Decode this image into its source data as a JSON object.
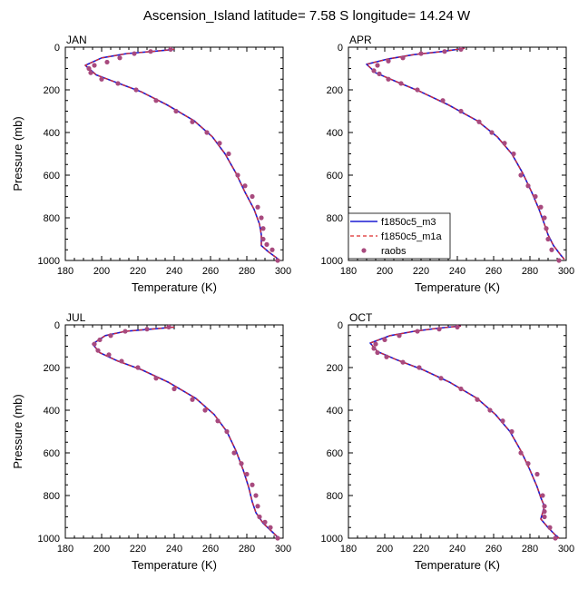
{
  "figure": {
    "title": "Ascension_Island  latitude= 7.58 S longitude= 14.24 W"
  },
  "chart_data": [
    {
      "type": "line",
      "panel": "JAN",
      "xlabel": "Temperature (K)",
      "ylabel": "Pressure (mb)",
      "xlim": [
        180,
        300
      ],
      "ylim": [
        0,
        1000
      ],
      "y_reversed": true,
      "x_ticks": [
        180,
        200,
        220,
        240,
        260,
        280,
        300
      ],
      "y_ticks": [
        0,
        200,
        400,
        600,
        800,
        1000
      ],
      "series": [
        {
          "name": "f1850c5_m3",
          "style": "solid",
          "color": "#1a1ad2",
          "x": [
            240,
            228,
            214,
            200,
            191,
            197,
            208,
            222,
            236,
            251,
            261,
            268,
            274,
            279,
            284,
            287,
            288,
            288,
            292,
            296,
            298
          ],
          "y": [
            10,
            20,
            30,
            50,
            85,
            130,
            165,
            210,
            270,
            345,
            420,
            500,
            590,
            680,
            760,
            830,
            880,
            930,
            960,
            985,
            1000
          ]
        },
        {
          "name": "f1850c5_m1a",
          "style": "dashed",
          "color": "#dd2a2a",
          "x": [
            240,
            228,
            214,
            200,
            191,
            197,
            208,
            222,
            236,
            251,
            261,
            268,
            274,
            279,
            284,
            287,
            288,
            288,
            292,
            296,
            298
          ],
          "y": [
            10,
            20,
            30,
            50,
            85,
            130,
            165,
            210,
            270,
            345,
            420,
            500,
            590,
            680,
            760,
            830,
            880,
            930,
            960,
            985,
            1000
          ]
        },
        {
          "name": "raobs",
          "style": "markers",
          "color": "#a84a7e",
          "x": [
            238,
            227,
            218,
            210,
            203,
            196,
            193,
            194,
            200,
            209,
            219,
            230,
            241,
            250,
            258,
            265,
            270,
            275,
            279,
            283,
            286,
            288,
            289,
            289,
            291,
            294,
            297
          ],
          "y": [
            10,
            20,
            30,
            50,
            70,
            85,
            100,
            120,
            150,
            170,
            200,
            250,
            300,
            350,
            400,
            450,
            500,
            600,
            650,
            700,
            750,
            800,
            850,
            900,
            925,
            950,
            1000
          ]
        }
      ]
    },
    {
      "type": "line",
      "panel": "APR",
      "xlabel": "Temperature (K)",
      "ylabel": "",
      "xlim": [
        180,
        300
      ],
      "ylim": [
        0,
        1000
      ],
      "y_reversed": true,
      "x_ticks": [
        180,
        200,
        220,
        240,
        260,
        280,
        300
      ],
      "y_ticks": [
        0,
        200,
        400,
        600,
        800,
        1000
      ],
      "legend": {
        "position": "bottom-left",
        "entries": [
          "f1850c5_m3",
          "f1850c5_m1a",
          "raobs"
        ]
      },
      "series": [
        {
          "name": "f1850c5_m3",
          "style": "solid",
          "color": "#1a1ad2",
          "x": [
            244,
            232,
            216,
            202,
            190,
            195,
            206,
            220,
            235,
            251,
            262,
            270,
            276,
            281,
            285,
            288,
            290,
            293,
            297,
            299
          ],
          "y": [
            5,
            20,
            35,
            55,
            80,
            120,
            160,
            210,
            270,
            345,
            420,
            500,
            590,
            680,
            760,
            830,
            880,
            930,
            975,
            995
          ]
        },
        {
          "name": "f1850c5_m1a",
          "style": "dashed",
          "color": "#dd2a2a",
          "x": [
            244,
            232,
            216,
            202,
            190,
            195,
            206,
            220,
            235,
            251,
            262,
            270,
            276,
            281,
            285,
            288,
            290,
            293,
            297,
            299
          ],
          "y": [
            5,
            20,
            35,
            55,
            80,
            120,
            160,
            210,
            270,
            345,
            420,
            500,
            590,
            680,
            760,
            830,
            880,
            930,
            975,
            995
          ]
        },
        {
          "name": "raobs",
          "style": "markers",
          "color": "#a84a7e",
          "x": [
            242,
            233,
            220,
            210,
            202,
            196,
            194,
            197,
            202,
            209,
            218,
            232,
            242,
            252,
            259,
            266,
            271,
            275,
            279,
            283,
            286,
            288,
            289,
            290,
            292,
            296
          ],
          "y": [
            10,
            20,
            30,
            50,
            65,
            85,
            110,
            125,
            150,
            170,
            200,
            250,
            300,
            350,
            400,
            450,
            500,
            600,
            650,
            700,
            750,
            800,
            850,
            900,
            950,
            1000
          ]
        }
      ]
    },
    {
      "type": "line",
      "panel": "JUL",
      "xlabel": "Temperature (K)",
      "ylabel": "Pressure (mb)",
      "xlim": [
        180,
        300
      ],
      "ylim": [
        0,
        1000
      ],
      "y_reversed": true,
      "x_ticks": [
        180,
        200,
        220,
        240,
        260,
        280,
        300
      ],
      "y_ticks": [
        0,
        200,
        400,
        600,
        800,
        1000
      ],
      "series": [
        {
          "name": "f1850c5_m3",
          "style": "solid",
          "color": "#1a1ad2",
          "x": [
            240,
            227,
            213,
            202,
            195,
            199,
            209,
            222,
            237,
            252,
            262,
            269,
            274,
            278,
            281,
            283,
            285,
            289,
            294,
            297
          ],
          "y": [
            10,
            20,
            30,
            50,
            90,
            130,
            170,
            210,
            270,
            345,
            420,
            500,
            590,
            680,
            760,
            830,
            880,
            930,
            970,
            995
          ]
        },
        {
          "name": "f1850c5_m1a",
          "style": "dashed",
          "color": "#dd2a2a",
          "x": [
            240,
            227,
            213,
            202,
            195,
            199,
            209,
            222,
            237,
            252,
            262,
            269,
            274,
            278,
            281,
            283,
            285,
            289,
            294,
            297
          ],
          "y": [
            10,
            20,
            30,
            50,
            90,
            130,
            170,
            210,
            270,
            345,
            420,
            500,
            590,
            680,
            760,
            830,
            880,
            930,
            970,
            995
          ]
        },
        {
          "name": "raobs",
          "style": "markers",
          "color": "#a84a7e",
          "x": [
            237,
            225,
            213,
            205,
            199,
            196,
            198,
            204,
            211,
            220,
            230,
            240,
            250,
            257,
            264,
            269,
            273,
            277,
            280,
            283,
            285,
            286,
            287,
            290,
            293,
            297
          ],
          "y": [
            10,
            20,
            30,
            50,
            70,
            90,
            120,
            140,
            170,
            200,
            250,
            300,
            350,
            400,
            450,
            500,
            600,
            650,
            700,
            750,
            800,
            850,
            900,
            925,
            950,
            1000
          ]
        }
      ]
    },
    {
      "type": "line",
      "panel": "OCT",
      "xlabel": "Temperature (K)",
      "ylabel": "",
      "xlim": [
        180,
        300
      ],
      "ylim": [
        0,
        1000
      ],
      "y_reversed": true,
      "x_ticks": [
        180,
        200,
        220,
        240,
        260,
        280,
        300
      ],
      "y_ticks": [
        0,
        200,
        400,
        600,
        800,
        1000
      ],
      "series": [
        {
          "name": "f1850c5_m3",
          "style": "solid",
          "color": "#1a1ad2",
          "x": [
            242,
            230,
            216,
            203,
            192,
            196,
            207,
            221,
            236,
            251,
            261,
            269,
            275,
            280,
            284,
            286,
            288,
            287,
            286,
            290,
            294,
            296
          ],
          "y": [
            5,
            15,
            30,
            50,
            85,
            125,
            165,
            210,
            270,
            345,
            420,
            500,
            590,
            680,
            760,
            810,
            850,
            880,
            910,
            950,
            985,
            1000
          ]
        },
        {
          "name": "f1850c5_m1a",
          "style": "dashed",
          "color": "#dd2a2a",
          "x": [
            242,
            230,
            216,
            203,
            192,
            196,
            207,
            221,
            236,
            251,
            261,
            269,
            275,
            280,
            284,
            286,
            288,
            287,
            286,
            290,
            294,
            296
          ],
          "y": [
            5,
            15,
            30,
            50,
            85,
            125,
            165,
            210,
            270,
            345,
            420,
            500,
            590,
            680,
            760,
            810,
            850,
            880,
            910,
            950,
            985,
            1000
          ]
        },
        {
          "name": "raobs",
          "style": "markers",
          "color": "#a84a7e",
          "x": [
            240,
            230,
            218,
            208,
            200,
            195,
            194,
            196,
            201,
            210,
            219,
            231,
            242,
            251,
            258,
            265,
            270,
            275,
            279,
            284,
            287,
            288,
            288,
            288,
            291,
            294
          ],
          "y": [
            10,
            20,
            30,
            50,
            70,
            90,
            110,
            130,
            150,
            175,
            200,
            250,
            300,
            350,
            400,
            450,
            500,
            600,
            650,
            700,
            800,
            850,
            875,
            900,
            950,
            1000
          ]
        }
      ]
    }
  ]
}
